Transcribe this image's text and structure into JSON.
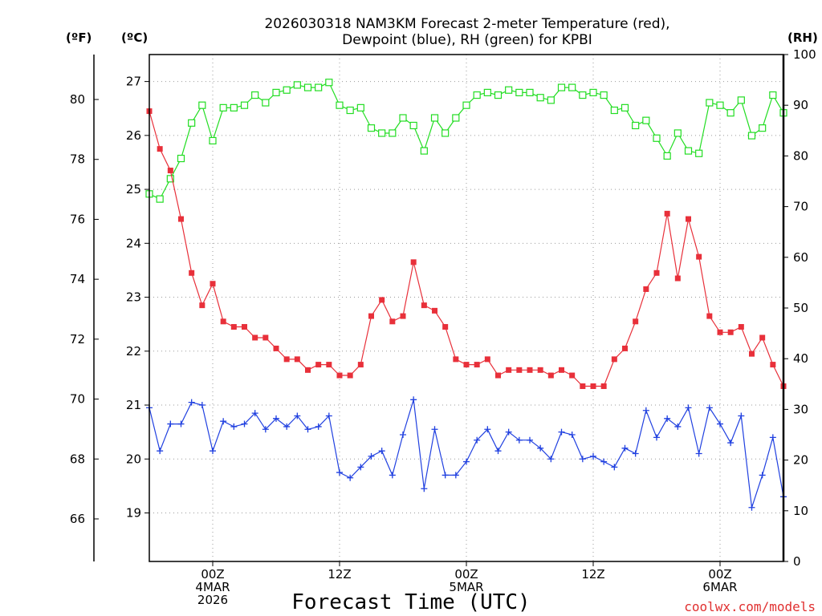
{
  "chart_data": {
    "type": "line",
    "title_line1": "2026030318 NAM3KM Forecast 2-meter Temperature (red),",
    "title_line2": "Dewpoint (blue), RH (green) for KPBI",
    "xlabel": "Forecast Time (UTC)",
    "credit": "coolwx.com/models",
    "units": {
      "fahrenheit": "(ºF)",
      "celsius": "(ºC)",
      "rh": "(RH)"
    },
    "x_hours_range": [
      -6,
      54
    ],
    "celsius_lim": [
      18.1,
      27.5
    ],
    "fahrenheit_ticks": [
      {
        "value": 66,
        "label": "66"
      },
      {
        "value": 68,
        "label": "68"
      },
      {
        "value": 70,
        "label": "70"
      },
      {
        "value": 72,
        "label": "72"
      },
      {
        "value": 74,
        "label": "74"
      },
      {
        "value": 76,
        "label": "76"
      },
      {
        "value": 78,
        "label": "78"
      },
      {
        "value": 80,
        "label": "80"
      }
    ],
    "celsius_ticks": [
      {
        "value": 19,
        "label": "19"
      },
      {
        "value": 20,
        "label": "20"
      },
      {
        "value": 21,
        "label": "21"
      },
      {
        "value": 22,
        "label": "22"
      },
      {
        "value": 23,
        "label": "23"
      },
      {
        "value": 24,
        "label": "24"
      },
      {
        "value": 25,
        "label": "25"
      },
      {
        "value": 26,
        "label": "26"
      },
      {
        "value": 27,
        "label": "27"
      }
    ],
    "rh_ticks": [
      {
        "value": 0,
        "label": "0"
      },
      {
        "value": 10,
        "label": "10"
      },
      {
        "value": 20,
        "label": "20"
      },
      {
        "value": 30,
        "label": "30"
      },
      {
        "value": 40,
        "label": "40"
      },
      {
        "value": 50,
        "label": "50"
      },
      {
        "value": 60,
        "label": "60"
      },
      {
        "value": 70,
        "label": "70"
      },
      {
        "value": 80,
        "label": "80"
      },
      {
        "value": 90,
        "label": "90"
      },
      {
        "value": 100,
        "label": "100"
      }
    ],
    "x_ticks": [
      {
        "hour": 0,
        "lines": [
          "00Z",
          "4MAR",
          "2026"
        ]
      },
      {
        "hour": 12,
        "lines": [
          "12Z"
        ]
      },
      {
        "hour": 24,
        "lines": [
          "00Z",
          "5MAR"
        ]
      },
      {
        "hour": 36,
        "lines": [
          "12Z"
        ]
      },
      {
        "hour": 48,
        "lines": [
          "00Z",
          "6MAR"
        ]
      }
    ],
    "series": [
      {
        "name": "Temperature",
        "axis": "celsius",
        "color": "#e8303a",
        "marker": "filled-square",
        "x": [
          -6,
          -5,
          -4,
          -3,
          -2,
          -1,
          0,
          1,
          2,
          3,
          4,
          5,
          6,
          7,
          8,
          9,
          10,
          11,
          12,
          13,
          14,
          15,
          16,
          17,
          18,
          19,
          20,
          21,
          22,
          23,
          24,
          25,
          26,
          27,
          28,
          29,
          30,
          31,
          32,
          33,
          34,
          35,
          36,
          37,
          38,
          39,
          40,
          41,
          42,
          43,
          44,
          45,
          46,
          47,
          48,
          49,
          50,
          51,
          52,
          53,
          54
        ],
        "values": [
          26.45,
          25.75,
          25.35,
          24.45,
          23.45,
          22.85,
          23.25,
          22.55,
          22.45,
          22.45,
          22.25,
          22.25,
          22.05,
          21.85,
          21.85,
          21.65,
          21.75,
          21.75,
          21.55,
          21.55,
          21.75,
          22.65,
          22.95,
          22.55,
          22.65,
          23.65,
          22.85,
          22.75,
          22.45,
          21.85,
          21.75,
          21.75,
          21.85,
          21.55,
          21.65,
          21.65,
          21.65,
          21.65,
          21.55,
          21.65,
          21.55,
          21.35,
          21.35,
          21.35,
          21.85,
          22.05,
          22.55,
          23.15,
          23.45,
          24.55,
          23.35,
          24.45,
          23.75,
          22.65,
          22.35,
          22.35,
          22.45,
          21.95,
          22.25,
          21.75,
          21.35
        ]
      },
      {
        "name": "Dewpoint",
        "axis": "celsius",
        "color": "#2040e0",
        "marker": "plus",
        "x": [
          -6,
          -5,
          -4,
          -3,
          -2,
          -1,
          0,
          1,
          2,
          3,
          4,
          5,
          6,
          7,
          8,
          9,
          10,
          11,
          12,
          13,
          14,
          15,
          16,
          17,
          18,
          19,
          20,
          21,
          22,
          23,
          24,
          25,
          26,
          27,
          28,
          29,
          30,
          31,
          32,
          33,
          34,
          35,
          36,
          37,
          38,
          39,
          40,
          41,
          42,
          43,
          44,
          45,
          46,
          47,
          48,
          49,
          50,
          51,
          52,
          53,
          54
        ],
        "values": [
          20.95,
          20.15,
          20.65,
          20.65,
          21.05,
          21.0,
          20.15,
          20.7,
          20.6,
          20.65,
          20.85,
          20.55,
          20.75,
          20.6,
          20.8,
          20.55,
          20.6,
          20.8,
          19.75,
          19.65,
          19.85,
          20.05,
          20.15,
          19.7,
          20.45,
          21.1,
          19.45,
          20.55,
          19.7,
          19.7,
          19.95,
          20.35,
          20.55,
          20.15,
          20.5,
          20.35,
          20.35,
          20.2,
          20.0,
          20.5,
          20.45,
          20.0,
          20.05,
          19.95,
          19.85,
          20.2,
          20.1,
          20.9,
          20.4,
          20.75,
          20.6,
          20.95,
          20.1,
          20.95,
          20.65,
          20.3,
          20.8,
          19.1,
          19.7,
          20.4,
          19.3
        ]
      },
      {
        "name": "RH",
        "axis": "rh",
        "color": "#22dd22",
        "marker": "open-square",
        "x": [
          -6,
          -5,
          -4,
          -3,
          -2,
          -1,
          0,
          1,
          2,
          3,
          4,
          5,
          6,
          7,
          8,
          9,
          10,
          11,
          12,
          13,
          14,
          15,
          16,
          17,
          18,
          19,
          20,
          21,
          22,
          23,
          24,
          25,
          26,
          27,
          28,
          29,
          30,
          31,
          32,
          33,
          34,
          35,
          36,
          37,
          38,
          39,
          40,
          41,
          42,
          43,
          44,
          45,
          46,
          47,
          48,
          49,
          50,
          51,
          52,
          53,
          54
        ],
        "values": [
          72.5,
          71.5,
          75.5,
          79.5,
          86.5,
          90.0,
          83.0,
          89.5,
          89.5,
          90.0,
          92.0,
          90.5,
          92.5,
          93.0,
          94.0,
          93.5,
          93.5,
          94.5,
          90.0,
          89.0,
          89.5,
          85.5,
          84.5,
          84.5,
          87.5,
          86.0,
          81.0,
          87.5,
          84.5,
          87.5,
          90.0,
          92.0,
          92.5,
          92.0,
          93.0,
          92.5,
          92.5,
          91.5,
          91.0,
          93.5,
          93.5,
          92.0,
          92.5,
          92.0,
          89.0,
          89.5,
          86.0,
          87.0,
          83.5,
          80.0,
          84.5,
          81.0,
          80.5,
          90.5,
          90.0,
          88.5,
          91.0,
          84.0,
          85.5,
          92.0,
          88.5
        ]
      }
    ]
  }
}
